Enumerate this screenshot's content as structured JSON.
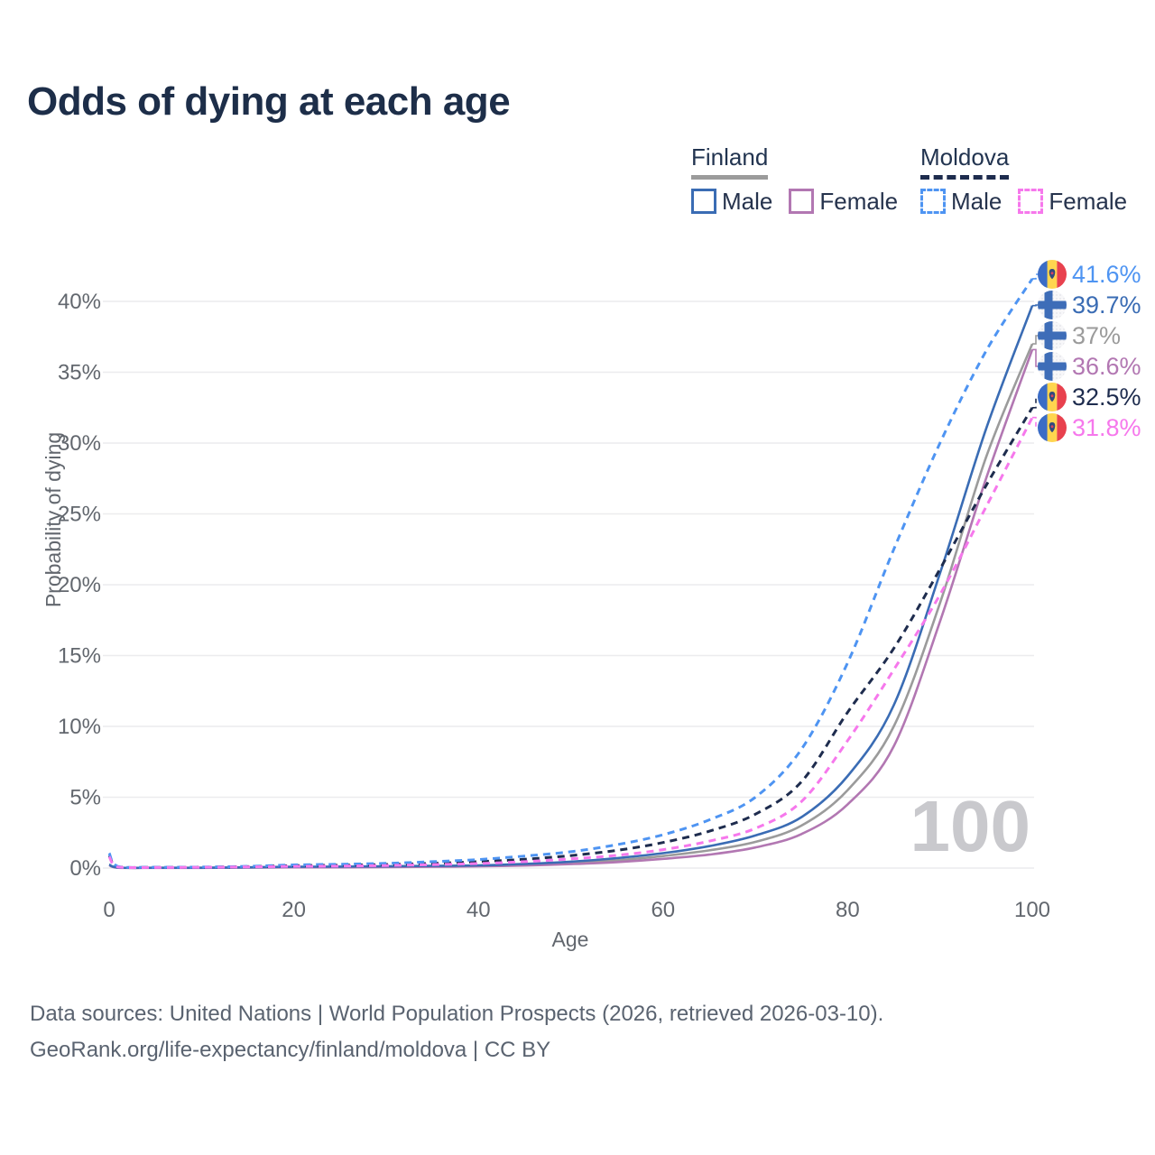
{
  "title": "Odds of dying at each age",
  "legend": {
    "groups": [
      {
        "name": "Finland",
        "style": "solid",
        "underline_color": "#9b9b9b",
        "items": [
          {
            "label": "Male",
            "color": "#3a6cb4"
          },
          {
            "label": "Female",
            "color": "#b277b2"
          }
        ]
      },
      {
        "name": "Moldova",
        "style": "dashed",
        "underline_color": "#1e2c4e",
        "items": [
          {
            "label": "Male",
            "color": "#4e94f2"
          },
          {
            "label": "Female",
            "color": "#f678ec"
          }
        ]
      }
    ]
  },
  "chart_data": {
    "type": "line",
    "title": "Odds of dying at each age",
    "xlabel": "Age",
    "ylabel": "Probability of dying",
    "x_ticks": [
      0,
      20,
      40,
      60,
      80,
      100
    ],
    "y_ticks": [
      "0%",
      "5%",
      "10%",
      "15%",
      "20%",
      "25%",
      "30%",
      "35%",
      "40%"
    ],
    "xlim": [
      0,
      100
    ],
    "ylim": [
      0,
      42
    ],
    "grid": "horizontal",
    "legend_position": "top-right",
    "watermark": "100",
    "colors": {
      "grid": "#ececee",
      "tick_text": "#62676e",
      "watermark": "#c9c9cd",
      "title_text": "#1d2e49",
      "footer_text": "#5a6370"
    },
    "ages": [
      0,
      1,
      5,
      10,
      15,
      20,
      25,
      30,
      35,
      40,
      45,
      50,
      55,
      60,
      65,
      70,
      75,
      80,
      85,
      90,
      95,
      100
    ],
    "series": [
      {
        "name": "Moldova Male",
        "flag": "moldova",
        "dash": true,
        "color": "#4e94f2",
        "end_label": "41.6%",
        "values": [
          1.05,
          0.1,
          0.06,
          0.07,
          0.12,
          0.22,
          0.27,
          0.33,
          0.45,
          0.6,
          0.85,
          1.15,
          1.65,
          2.35,
          3.4,
          5.0,
          8.4,
          14.5,
          22.5,
          30.0,
          36.5,
          41.6
        ]
      },
      {
        "name": "Finland Male",
        "flag": "finland",
        "dash": false,
        "color": "#3a6cb4",
        "end_label": "39.7%",
        "values": [
          0.25,
          0.03,
          0.02,
          0.02,
          0.05,
          0.09,
          0.1,
          0.12,
          0.15,
          0.19,
          0.29,
          0.45,
          0.7,
          1.05,
          1.55,
          2.3,
          3.6,
          6.5,
          11.5,
          20.8,
          31.0,
          39.7
        ]
      },
      {
        "name": "Finland",
        "flag": "finland",
        "dash": false,
        "color": "#9b9b9b",
        "end_label": "37%",
        "values": [
          0.22,
          0.03,
          0.02,
          0.02,
          0.04,
          0.07,
          0.08,
          0.1,
          0.12,
          0.16,
          0.24,
          0.37,
          0.55,
          0.85,
          1.25,
          1.85,
          3.0,
          5.5,
          10.0,
          18.7,
          29.0,
          37.0
        ]
      },
      {
        "name": "Finland Female",
        "flag": "finland",
        "dash": false,
        "color": "#b277b2",
        "end_label": "36.6%",
        "values": [
          0.2,
          0.02,
          0.01,
          0.01,
          0.03,
          0.05,
          0.05,
          0.07,
          0.09,
          0.12,
          0.18,
          0.28,
          0.42,
          0.65,
          0.95,
          1.45,
          2.4,
          4.5,
          8.6,
          17.4,
          27.5,
          36.6
        ]
      },
      {
        "name": "Moldova",
        "flag": "moldova",
        "dash": true,
        "color": "#1e2c4e",
        "end_label": "32.5%",
        "values": [
          0.9,
          0.08,
          0.05,
          0.06,
          0.1,
          0.17,
          0.2,
          0.25,
          0.33,
          0.45,
          0.62,
          0.88,
          1.25,
          1.8,
          2.6,
          3.8,
          6.1,
          11.0,
          15.5,
          21.1,
          27.0,
          32.5
        ]
      },
      {
        "name": "Moldova Female",
        "flag": "moldova",
        "dash": true,
        "color": "#f678ec",
        "end_label": "31.8%",
        "values": [
          0.8,
          0.07,
          0.04,
          0.05,
          0.08,
          0.12,
          0.14,
          0.18,
          0.24,
          0.32,
          0.45,
          0.65,
          0.9,
          1.3,
          1.9,
          2.8,
          4.7,
          9.0,
          14.0,
          19.3,
          25.5,
          31.8
        ]
      }
    ]
  },
  "footer": {
    "line1": "Data sources: United Nations | World Population Prospects (2026, retrieved 2026-03-10).",
    "line2": "GeoRank.org/life-expectancy/finland/moldova | CC BY"
  }
}
